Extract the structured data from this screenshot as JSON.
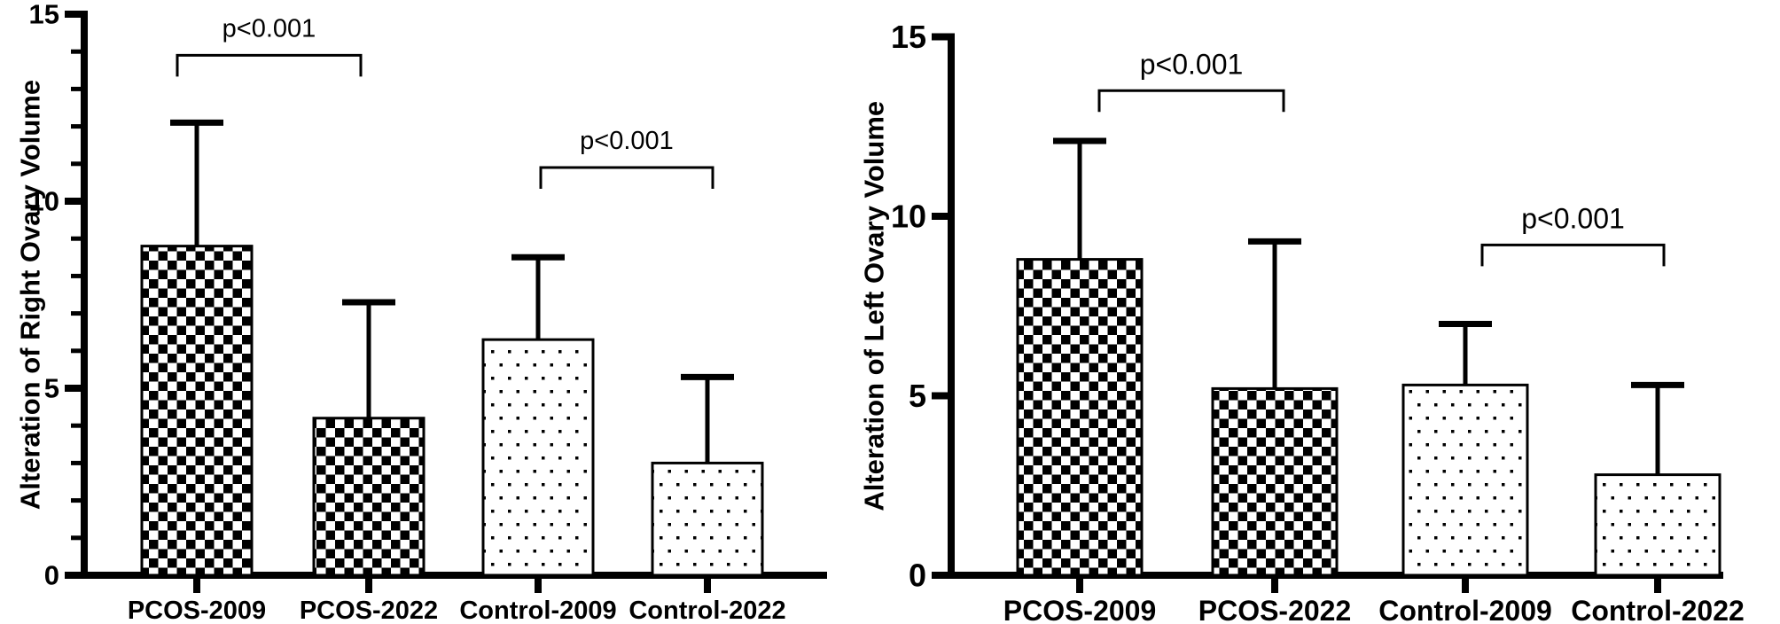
{
  "figure": {
    "background_color": "#ffffff",
    "ink_color": "#000000",
    "panels": 2
  },
  "chart_data": [
    {
      "type": "bar",
      "panel": "left",
      "title": "",
      "xlabel": "",
      "ylabel": "Alteration of Right Ovary Volume",
      "categories": [
        "PCOS-2009",
        "PCOS-2022",
        "Control-2009",
        "Control-2022"
      ],
      "values": [
        8.8,
        4.2,
        6.3,
        3.0
      ],
      "error_bar_tops": [
        12.1,
        7.3,
        8.5,
        5.3
      ],
      "bar_fill_patterns": [
        "checkerboard",
        "checkerboard",
        "dotted",
        "dotted"
      ],
      "bar_outline_color": "#000000",
      "ylim": [
        0,
        15
      ],
      "yticks": [
        0,
        5,
        10,
        15
      ],
      "minor_tick_step": 1,
      "grid": false,
      "legend": null,
      "significance_brackets": [
        {
          "label": "p<0.001",
          "from": "PCOS-2009",
          "to": "PCOS-2022",
          "y": 13.9
        },
        {
          "label": "p<0.001",
          "from": "Control-2009",
          "to": "Control-2022",
          "y": 10.9
        }
      ]
    },
    {
      "type": "bar",
      "panel": "right",
      "title": "",
      "xlabel": "",
      "ylabel": "Alteration of Left Ovary Volume",
      "categories": [
        "PCOS-2009",
        "PCOS-2022",
        "Control-2009",
        "Control-2022"
      ],
      "values": [
        8.8,
        5.2,
        5.3,
        2.8
      ],
      "error_bar_tops": [
        12.1,
        9.3,
        7.0,
        5.3
      ],
      "bar_fill_patterns": [
        "checkerboard",
        "checkerboard",
        "dotted",
        "dotted"
      ],
      "bar_outline_color": "#000000",
      "ylim": [
        0,
        15
      ],
      "yticks": [
        0,
        5,
        10,
        15
      ],
      "minor_tick_step": 0,
      "grid": false,
      "legend": null,
      "significance_brackets": [
        {
          "label": "p<0.001",
          "from": "PCOS-2009",
          "to": "PCOS-2022",
          "y": 13.5
        },
        {
          "label": "p<0.001",
          "from": "Control-2009",
          "to": "Control-2022",
          "y": 9.2
        }
      ]
    }
  ]
}
